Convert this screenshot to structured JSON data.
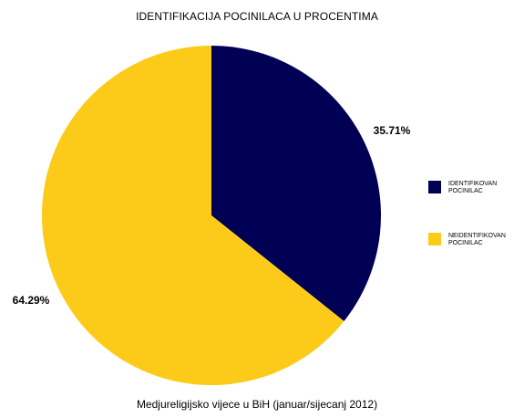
{
  "title": "IDENTIFIKACIJA POCINILACA U PROCENTIMA",
  "caption": "Medjureligijsko vijece u BiH (januar/sijecanj 2012)",
  "chart_data": {
    "type": "pie",
    "title": "IDENTIFIKACIJA POCINILACA U PROCENTIMA",
    "slices": [
      {
        "label": "IDENTIFIKOVAN POCINILAC",
        "legend_lines": [
          "IDENTIFIKOVAN",
          "POCINILAC"
        ],
        "value": 35.71,
        "value_label": "35.71%",
        "color": "#000055"
      },
      {
        "label": "NEIDENTIFIKOVAN POCINILAC",
        "legend_lines": [
          "NEIDENTIFIKOVAN",
          "POCINILAC"
        ],
        "value": 64.29,
        "value_label": "64.29%",
        "color": "#FCCB1A"
      }
    ],
    "start_angle": "12 o'clock",
    "direction": "clockwise",
    "legend_placement": "right"
  }
}
